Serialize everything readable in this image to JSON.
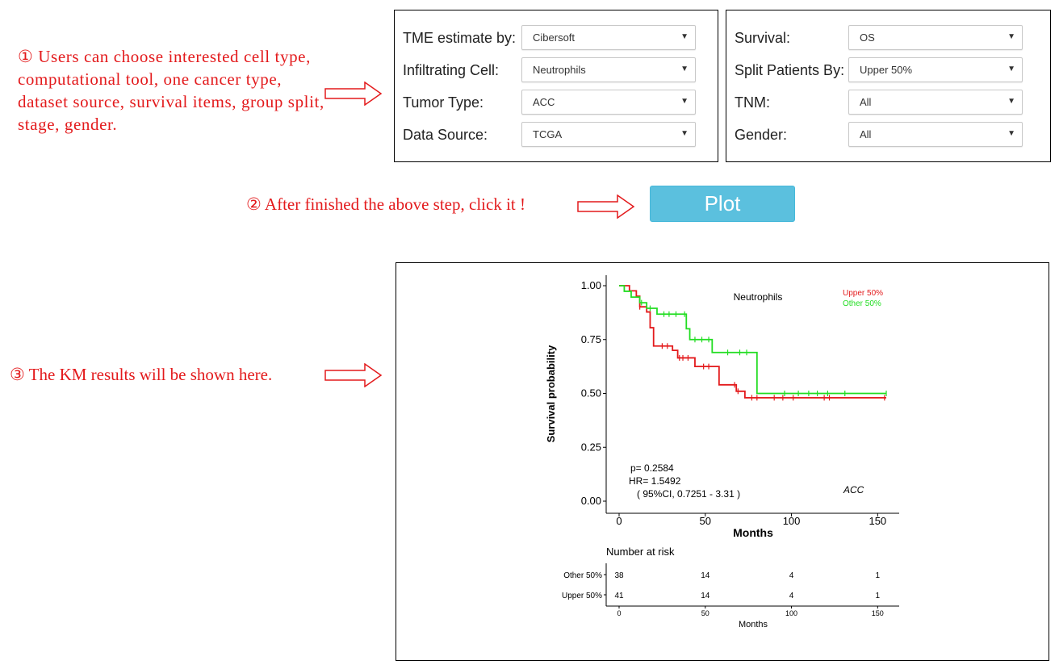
{
  "notes": {
    "step1": "① Users can choose interested cell type, computational tool, one cancer type, dataset source, survival items, group split, stage, gender.",
    "step2": "② After finished the above step, click it !",
    "step3": "③ The KM results will be shown here."
  },
  "left_panel": {
    "rows": [
      {
        "label": "TME estimate by:",
        "value": "Cibersoft"
      },
      {
        "label": "Infiltrating Cell:",
        "value": "Neutrophils"
      },
      {
        "label": "Tumor Type:",
        "value": "ACC"
      },
      {
        "label": "Data Source:",
        "value": "TCGA"
      }
    ]
  },
  "right_panel": {
    "rows": [
      {
        "label": "Survival:",
        "value": "OS"
      },
      {
        "label": "Split Patients By:",
        "value": "Upper 50%"
      },
      {
        "label": "TNM:",
        "value": "All"
      },
      {
        "label": "Gender:",
        "value": "All"
      }
    ]
  },
  "plot_button": {
    "label": "Plot"
  },
  "colors": {
    "accent": "#e31a1c",
    "button": "#5bc0de",
    "upper": "#e31a1c",
    "other": "#22dd22"
  },
  "chart_data": {
    "type": "line",
    "title": "Neutrophils",
    "cancer_label": "ACC",
    "xlabel": "Months",
    "ylabel": "Survival probability",
    "xlim": [
      0,
      155
    ],
    "ylim": [
      0,
      1.0
    ],
    "xticks": [
      "0",
      "50",
      "100",
      "150"
    ],
    "yticks": [
      "0.00",
      "0.25",
      "0.50",
      "0.75",
      "1.00"
    ],
    "stats": {
      "p": "p= 0.2584",
      "hr": "HR= 1.5492",
      "ci": "( 95%CI, 0.7251 - 3.31 )"
    },
    "legend_position": "top-right",
    "series": [
      {
        "name": "Upper 50%",
        "color": "#e31a1c",
        "steps": [
          [
            0,
            1.0
          ],
          [
            6,
            0.976
          ],
          [
            10,
            0.951
          ],
          [
            12,
            0.902
          ],
          [
            16,
            0.878
          ],
          [
            18,
            0.805
          ],
          [
            20,
            0.72
          ],
          [
            31,
            0.7
          ],
          [
            34,
            0.665
          ],
          [
            44,
            0.625
          ],
          [
            58,
            0.54
          ],
          [
            68,
            0.51
          ],
          [
            73,
            0.48
          ],
          [
            155,
            0.48
          ]
        ],
        "censor": [
          12,
          25,
          28,
          35,
          37,
          40,
          49,
          52,
          67,
          69,
          77,
          80,
          90,
          95,
          101,
          119,
          122,
          154
        ]
      },
      {
        "name": "Other  50%",
        "color": "#22dd22",
        "steps": [
          [
            0,
            1.0
          ],
          [
            3,
            0.974
          ],
          [
            7,
            0.947
          ],
          [
            12,
            0.921
          ],
          [
            16,
            0.895
          ],
          [
            22,
            0.868
          ],
          [
            39,
            0.8
          ],
          [
            41,
            0.75
          ],
          [
            54,
            0.69
          ],
          [
            80,
            0.5
          ],
          [
            155,
            0.5
          ]
        ],
        "censor": [
          13,
          18,
          26,
          29,
          33,
          38,
          44,
          48,
          52,
          63,
          70,
          74,
          96,
          104,
          110,
          115,
          121,
          131,
          155
        ]
      }
    ],
    "risk_table": {
      "title": "Number at risk",
      "xlabel": "Months",
      "groups": [
        {
          "name": "Other  50%",
          "counts": [
            "38",
            "14",
            "4",
            "1"
          ]
        },
        {
          "name": "Upper 50%",
          "counts": [
            "41",
            "14",
            "4",
            "1"
          ]
        }
      ]
    }
  }
}
